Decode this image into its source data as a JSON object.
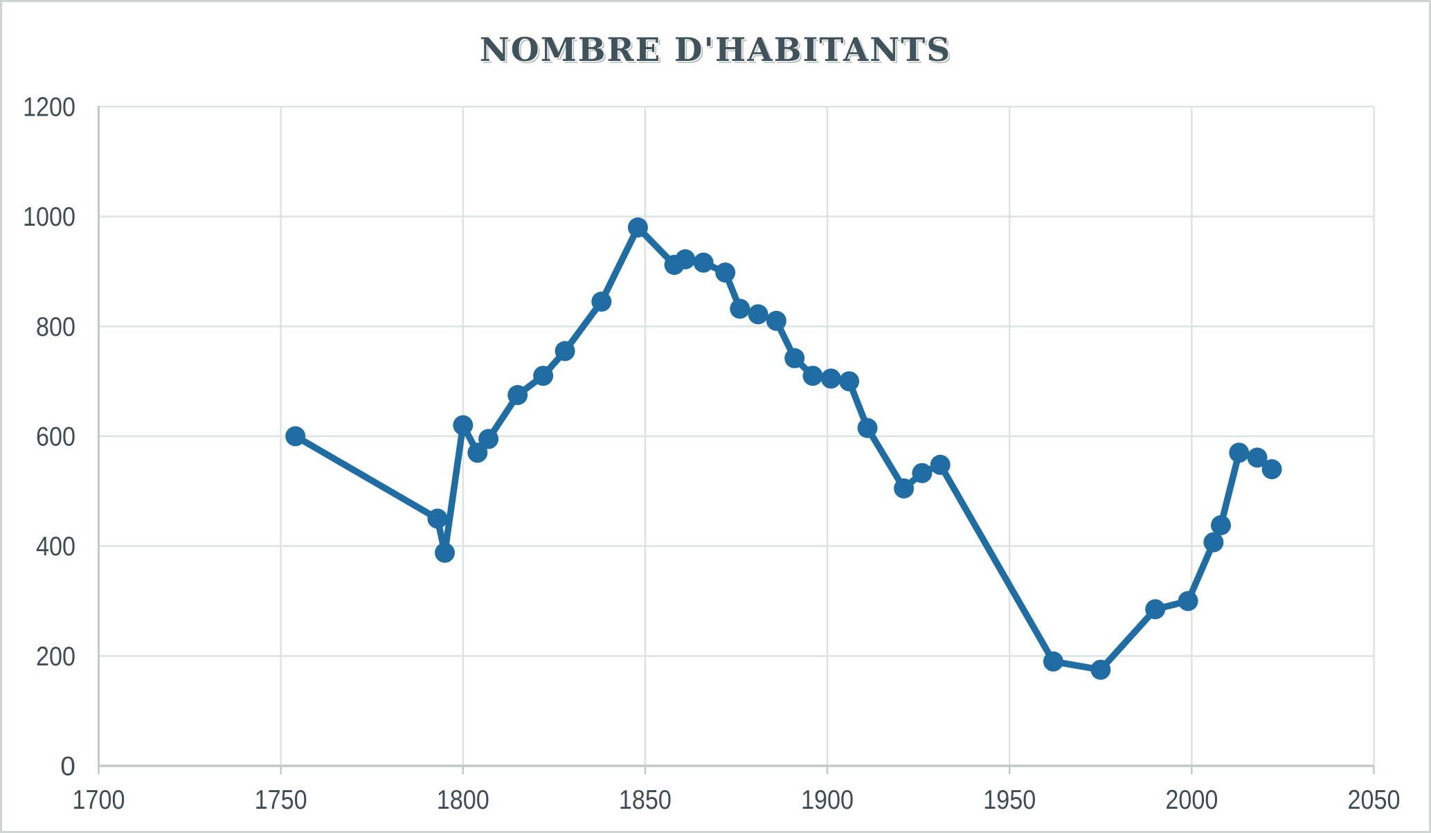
{
  "window": {
    "background": "#ffffff",
    "border_color": "#ccd5d1"
  },
  "chart_data": {
    "type": "line",
    "title": "NOMBRE D'HABITANTS",
    "xlabel": "",
    "ylabel": "",
    "xlim": [
      1700,
      2050
    ],
    "ylim": [
      0,
      1200
    ],
    "x_ticks": [
      1700,
      1750,
      1800,
      1850,
      1900,
      1950,
      2000,
      2050
    ],
    "y_ticks": [
      0,
      200,
      400,
      600,
      800,
      1000,
      1200
    ],
    "grid": true,
    "legend": "none",
    "series": [
      {
        "name": "Nombre d'habitants",
        "color": "#1f6da3",
        "marker": "circle",
        "x": [
          1754,
          1793,
          1795,
          1800,
          1804,
          1807,
          1815,
          1822,
          1828,
          1838,
          1848,
          1858,
          1861,
          1866,
          1872,
          1876,
          1881,
          1886,
          1891,
          1896,
          1901,
          1906,
          1911,
          1921,
          1926,
          1931,
          1962,
          1975,
          1990,
          1999,
          2006,
          2008,
          2013,
          2018,
          2022
        ],
        "y": [
          600,
          450,
          388,
          620,
          570,
          595,
          675,
          710,
          755,
          845,
          980,
          912,
          922,
          916,
          898,
          832,
          822,
          810,
          742,
          710,
          705,
          700,
          615,
          505,
          533,
          548,
          190,
          175,
          285,
          300,
          407,
          438,
          570,
          561,
          540
        ]
      }
    ],
    "colors": {
      "series": "#1f6da3",
      "gridline": "#dce4e0",
      "axis": "#c0cbc7",
      "tick_label": "#3e4d53",
      "title": "#40535a"
    }
  }
}
